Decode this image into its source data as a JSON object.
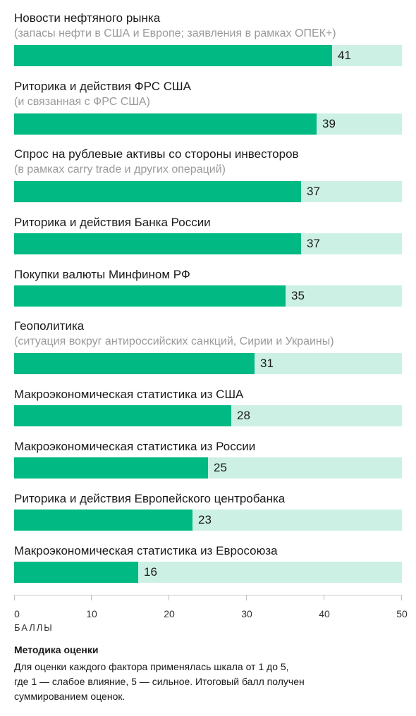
{
  "chart_data": {
    "type": "bar",
    "orientation": "horizontal",
    "categories": [
      "Новости нефтяного рынка",
      "Риторика и действия ФРС США",
      "Спрос на рублевые активы со стороны инвесторов",
      "Риторика и действия Банка России",
      "Покупки валюты Минфином РФ",
      "Геополитика",
      "Макроэкономическая статистика из США",
      "Макроэкономическая статистика из России",
      "Риторика и действия Европейского центробанка",
      "Макроэкономическая статистика из Евросоюза"
    ],
    "notes": [
      "(запасы нефти в США и Европе; заявления в рамках ОПЕК+)",
      "(и связанная с ФРС США)",
      "(в рамках carry trade и других операций)",
      "",
      "",
      "(ситуация вокруг антироссийских санкций, Сирии и Украины)",
      "",
      "",
      "",
      ""
    ],
    "values": [
      41,
      39,
      37,
      37,
      35,
      31,
      28,
      25,
      23,
      16
    ],
    "xlim": [
      0,
      50
    ],
    "ticks": [
      0,
      10,
      20,
      30,
      40,
      50
    ],
    "xlabel": "БАЛЛЫ",
    "colors": {
      "bar": "#00b983",
      "track": "#cdf0e5"
    }
  },
  "methodology": {
    "title": "Методика оценки",
    "lines": [
      "Для оценки каждого фактора применялась шкала от 1 до 5,",
      "где 1 — слабое влияние, 5 — сильное. Итоговый балл получен",
      "суммированием оценок."
    ]
  }
}
